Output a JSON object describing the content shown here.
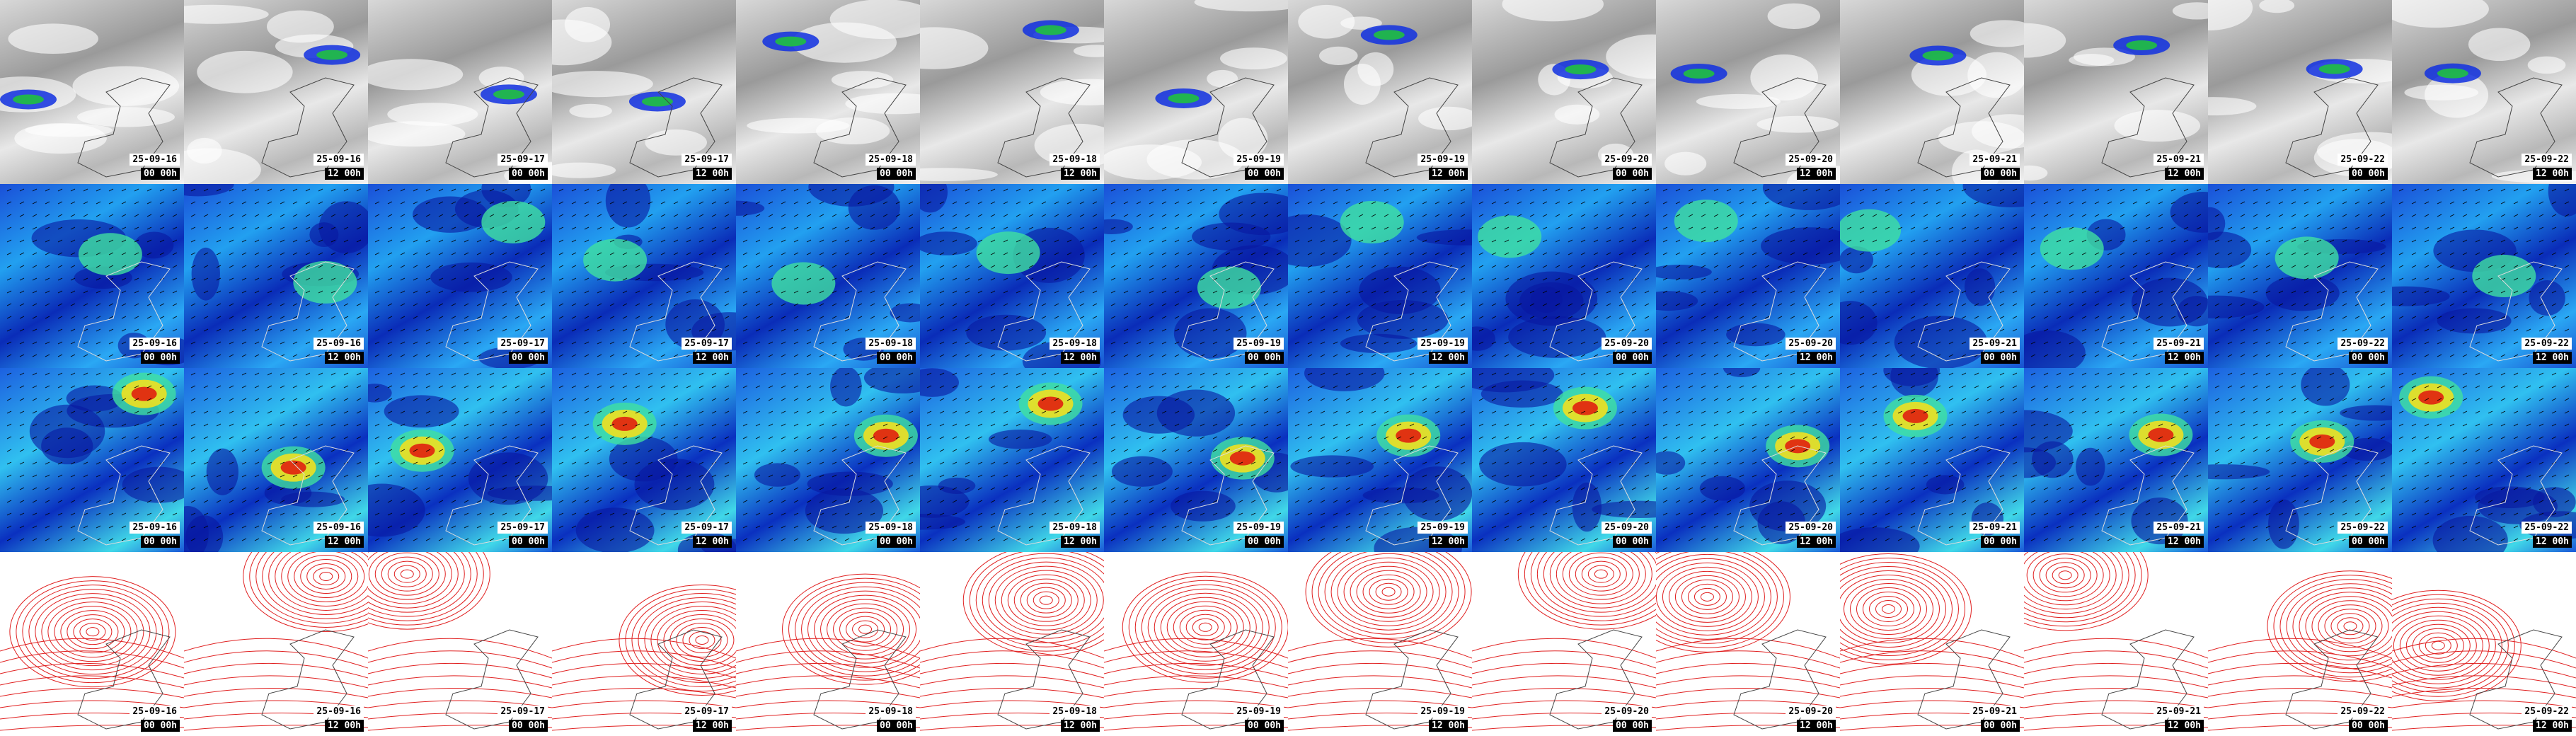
{
  "columns": [
    {
      "date": "25-09-16",
      "time": "00 00h"
    },
    {
      "date": "25-09-16",
      "time": "12 00h"
    },
    {
      "date": "25-09-17",
      "time": "00 00h"
    },
    {
      "date": "25-09-17",
      "time": "12 00h"
    },
    {
      "date": "25-09-18",
      "time": "00 00h"
    },
    {
      "date": "25-09-18",
      "time": "12 00h"
    },
    {
      "date": "25-09-19",
      "time": "00 00h"
    },
    {
      "date": "25-09-19",
      "time": "12 00h"
    },
    {
      "date": "25-09-20",
      "time": "00 00h"
    },
    {
      "date": "25-09-20",
      "time": "12 00h"
    },
    {
      "date": "25-09-21",
      "time": "00 00h"
    },
    {
      "date": "25-09-21",
      "time": "12 00h"
    },
    {
      "date": "25-09-22",
      "time": "00 00h"
    },
    {
      "date": "25-09-22",
      "time": "12 00h"
    }
  ]
}
